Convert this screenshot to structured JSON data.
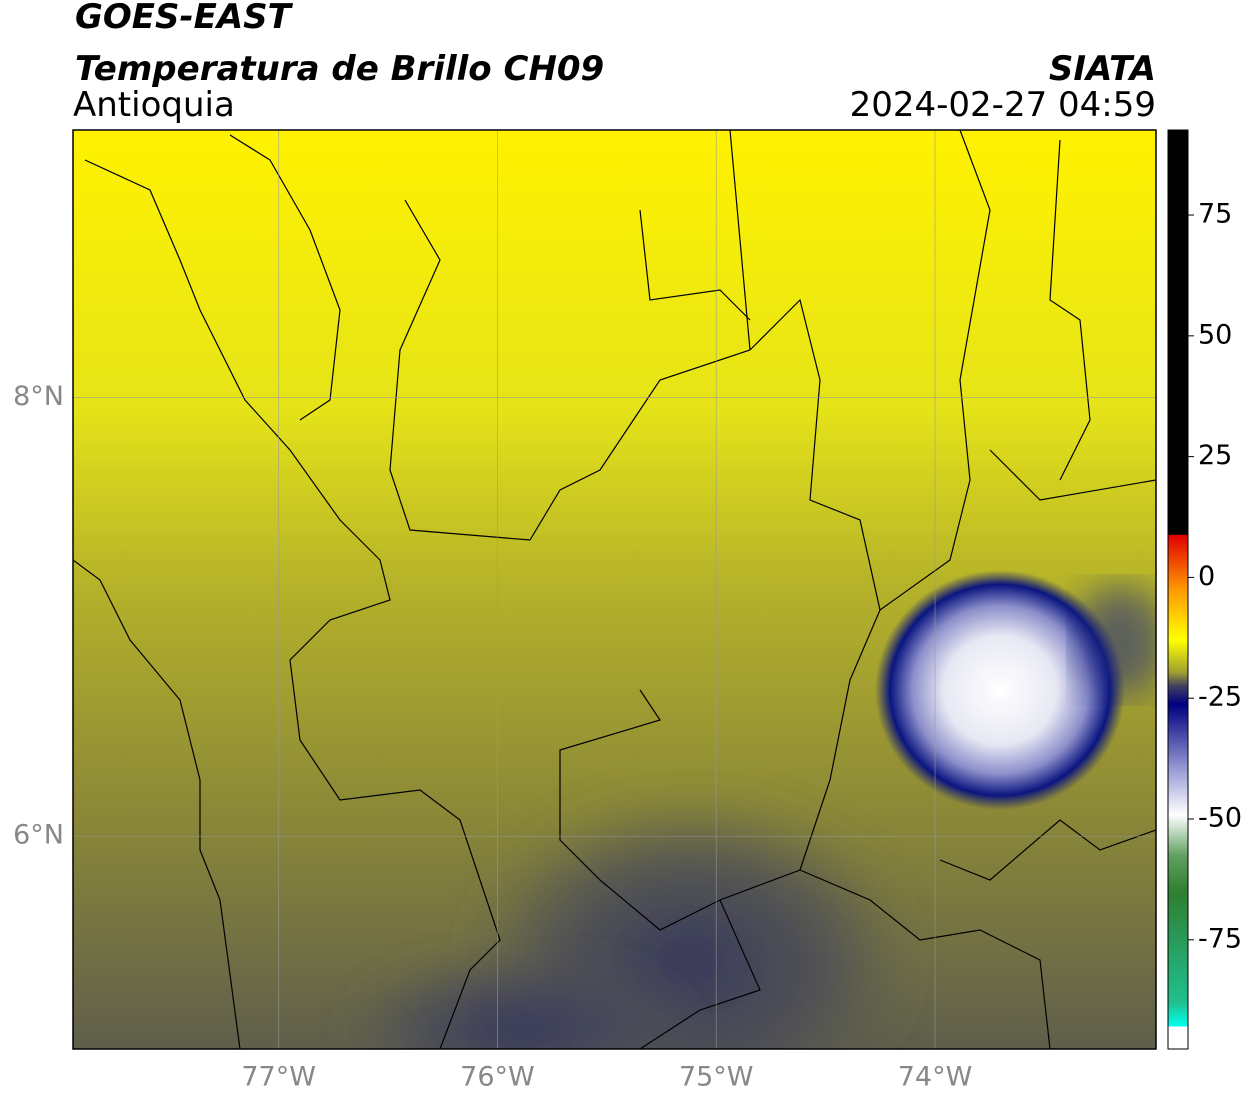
{
  "header": {
    "title": "GOES-EAST",
    "subtitle": "Temperatura de Brillo CH09",
    "region": "Antioquia",
    "source": "SIATA",
    "timestamp": "2024-02-27 04:59"
  },
  "map": {
    "xlim": [
      -77.94,
      -72.99
    ],
    "ylim": [
      5.03,
      9.22
    ],
    "xticks": [
      {
        "value": -77,
        "label": "77°W"
      },
      {
        "value": -76,
        "label": "76°W"
      },
      {
        "value": -75,
        "label": "75°W"
      },
      {
        "value": -74,
        "label": "74°W"
      }
    ],
    "yticks": [
      {
        "value": 8,
        "label": "8°N"
      },
      {
        "value": 6,
        "label": "6°N"
      }
    ],
    "grid": true
  },
  "colorbar": {
    "lim": [
      -97.6,
      92.6
    ],
    "ticks": [
      75,
      50,
      25,
      0,
      -25,
      -50,
      -75
    ]
  }
}
